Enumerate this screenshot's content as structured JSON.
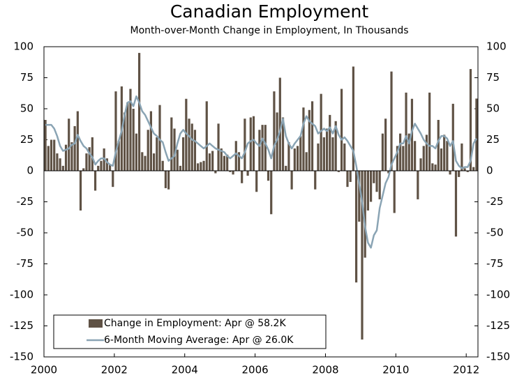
{
  "chart_data": {
    "type": "bar_line",
    "title": "Canadian Employment",
    "subtitle": "Month-over-Month Change in Employment, In Thousands",
    "categories": [
      "2000",
      null,
      null,
      null,
      null,
      null,
      null,
      null,
      null,
      null,
      null,
      null,
      null,
      null,
      null,
      null,
      null,
      null,
      null,
      null,
      null,
      null,
      null,
      null,
      "2002",
      null,
      null,
      null,
      null,
      null,
      null,
      null,
      null,
      null,
      null,
      null,
      null,
      null,
      null,
      null,
      null,
      null,
      null,
      null,
      null,
      null,
      null,
      null,
      "2004",
      null,
      null,
      null,
      null,
      null,
      null,
      null,
      null,
      null,
      null,
      null,
      null,
      null,
      null,
      null,
      null,
      null,
      null,
      null,
      null,
      null,
      null,
      null,
      "2006",
      null,
      null,
      null,
      null,
      null,
      null,
      null,
      null,
      null,
      null,
      null,
      null,
      null,
      null,
      null,
      null,
      null,
      null,
      null,
      null,
      null,
      null,
      null,
      "2008",
      null,
      null,
      null,
      null,
      null,
      null,
      null,
      null,
      null,
      null,
      null,
      null,
      null,
      null,
      null,
      null,
      null,
      null,
      null,
      null,
      null,
      null,
      null,
      "2010",
      null,
      null,
      null,
      null,
      null,
      null,
      null,
      null,
      null,
      null,
      null,
      null,
      null,
      null,
      null,
      null,
      null,
      null,
      null,
      null,
      null,
      null,
      null,
      "2012",
      null,
      null,
      null
    ],
    "series": [
      {
        "name": "Change in Employment: Apr @ 58.2K",
        "type": "bar",
        "color": "#5f5245",
        "values": [
          41,
          20,
          25,
          25,
          14,
          10,
          4,
          21,
          42,
          23,
          36,
          48,
          -32,
          2,
          14,
          19,
          27,
          -16,
          4,
          8,
          18,
          10,
          5,
          -13,
          64,
          24,
          68,
          47,
          55,
          66,
          50,
          30,
          95,
          15,
          12,
          33,
          48,
          14,
          27,
          53,
          8,
          -14,
          -15,
          43,
          34,
          17,
          4,
          27,
          58,
          42,
          38,
          33,
          6,
          7,
          8,
          56,
          14,
          16,
          -2,
          38,
          18,
          12,
          13,
          -1,
          -3,
          24,
          15,
          -10,
          42,
          -4,
          43,
          44,
          -17,
          33,
          37,
          37,
          -8,
          -35,
          64,
          47,
          75,
          43,
          4,
          23,
          -15,
          18,
          20,
          28,
          51,
          15,
          49,
          56,
          -15,
          22,
          62,
          27,
          34,
          45,
          27,
          40,
          -1,
          66,
          22,
          -13,
          -9,
          84,
          -90,
          -41,
          -136,
          -70,
          -32,
          -25,
          -10,
          -17,
          -23,
          30,
          42,
          -2,
          80,
          -34,
          20,
          30,
          20,
          63,
          30,
          58,
          24,
          -23,
          10,
          20,
          29,
          63,
          6,
          5,
          41,
          18,
          29,
          24,
          -3,
          54,
          -53,
          -5,
          22,
          2,
          -1,
          82,
          3,
          58.2
        ]
      },
      {
        "name": "6-Month Moving Average: Apr @ 26.0K",
        "type": "line",
        "color": "#8aa4b4",
        "values": [
          37,
          37,
          37,
          34,
          28,
          20,
          16,
          17,
          18,
          21,
          22,
          29,
          24,
          20,
          18,
          14,
          11,
          5,
          8,
          10,
          10,
          7,
          5,
          4,
          15,
          24,
          32,
          45,
          55,
          56,
          52,
          60,
          55,
          48,
          45,
          40,
          35,
          30,
          28,
          25,
          23,
          15,
          8,
          10,
          12,
          22,
          30,
          33,
          30,
          28,
          25,
          24,
          22,
          20,
          18,
          20,
          22,
          20,
          18,
          17,
          16,
          15,
          12,
          10,
          12,
          14,
          12,
          10,
          15,
          22,
          24,
          25,
          22,
          20,
          26,
          22,
          17,
          10,
          20,
          25,
          32,
          42,
          28,
          22,
          18,
          22,
          25,
          28,
          38,
          44,
          40,
          38,
          36,
          30,
          32,
          34,
          32,
          35,
          30,
          36,
          29,
          25,
          27,
          24,
          20,
          16,
          4,
          -10,
          -25,
          -45,
          -58,
          -62,
          -52,
          -48,
          -30,
          -20,
          -10,
          -5,
          5,
          10,
          15,
          22,
          22,
          28,
          22,
          32,
          38,
          34,
          30,
          25,
          22,
          20,
          20,
          18,
          24,
          28,
          28,
          26,
          20,
          24,
          8,
          4,
          2,
          3,
          3,
          8,
          22,
          26
        ]
      }
    ],
    "ylim": [
      -150,
      100
    ],
    "yticks": [
      100,
      75,
      50,
      25,
      0,
      -25,
      -50,
      -75,
      -100,
      -125,
      -150
    ],
    "y2lim": [
      -150,
      100
    ],
    "y2ticks": [
      100,
      75,
      50,
      25,
      0,
      -25,
      -50,
      -75,
      -100,
      -125,
      -150
    ],
    "legend": "lower left"
  }
}
